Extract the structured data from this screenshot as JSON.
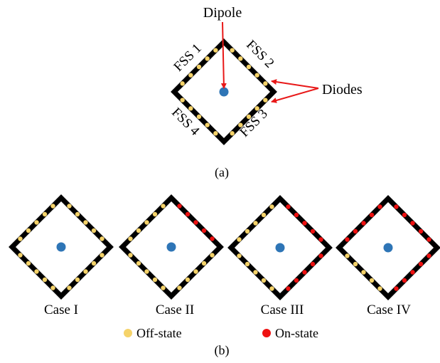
{
  "panel_a": {
    "dipole_label": "Dipole",
    "diodes_label": "Diodes",
    "fss_labels": [
      "FSS 1",
      "FSS 2",
      "FSS 3",
      "FSS 4"
    ],
    "caption": "(a)"
  },
  "panel_b": {
    "cases": [
      {
        "label": "Case I",
        "on_sides": []
      },
      {
        "label": "Case II",
        "on_sides": [
          "FSS 2"
        ]
      },
      {
        "label": "Case III",
        "on_sides": [
          "FSS 2",
          "FSS 3"
        ]
      },
      {
        "label": "Case IV",
        "on_sides": [
          "FSS 1",
          "FSS 2",
          "FSS 3"
        ]
      }
    ],
    "legend": [
      {
        "label": "Off-state",
        "color": "#f5d36a"
      },
      {
        "label": "On-state",
        "color": "#ee1111"
      }
    ],
    "caption": "(b)"
  },
  "colors": {
    "frame": "#000000",
    "dipole": "#2e75b6",
    "arrow": "#e81818",
    "off": "#f5d36a",
    "on": "#ee1111"
  }
}
